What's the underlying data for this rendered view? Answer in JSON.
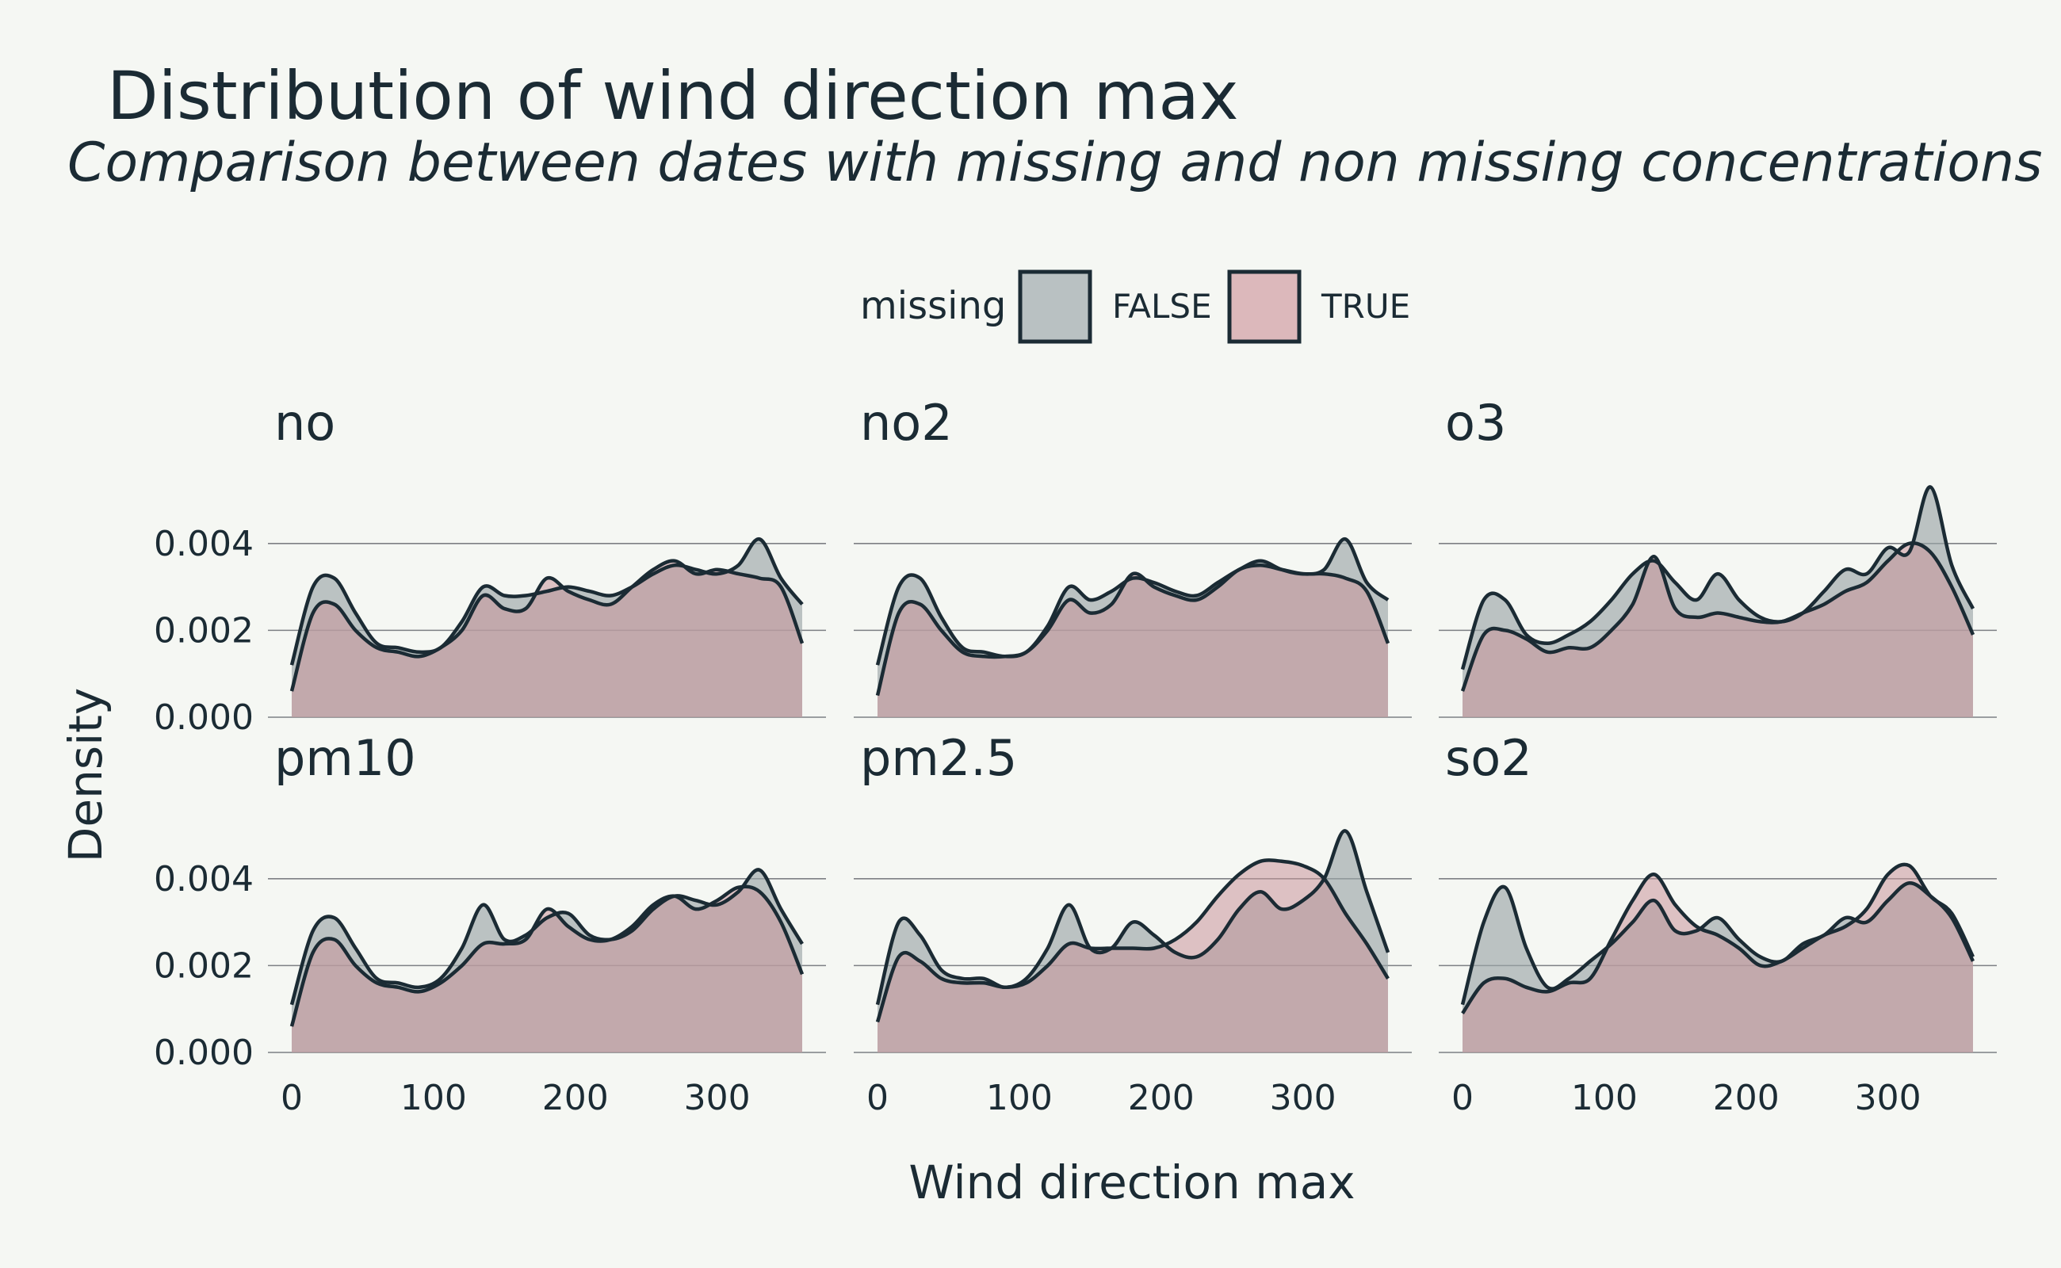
{
  "chart_data": {
    "type": "area",
    "title": "Distribution of wind direction max",
    "subtitle": "Comparison between dates with missing and non missing concentrations",
    "xlabel": "Wind direction max",
    "ylabel": "Density",
    "xlim": [
      0,
      360
    ],
    "ylim": [
      0,
      0.0052
    ],
    "x_ticks": [
      0,
      100,
      200,
      300
    ],
    "y_ticks": [
      0,
      0.002,
      0.004
    ],
    "y_tick_labels": [
      "0.000",
      "0.002",
      "0.004"
    ],
    "legend": {
      "title": "missing",
      "position": "top",
      "entries": [
        {
          "label": "FALSE",
          "fill": "#b9c1c2"
        },
        {
          "label": "TRUE",
          "fill": "#dcb8bb"
        }
      ]
    },
    "colors": {
      "outline": "#1b2b34",
      "false_fill": "#9ba6a8",
      "true_fill": "#c9959b",
      "background": "#f5f7f3"
    },
    "x": [
      0,
      15,
      30,
      45,
      60,
      75,
      90,
      105,
      120,
      135,
      150,
      165,
      180,
      195,
      210,
      225,
      240,
      255,
      270,
      285,
      300,
      315,
      330,
      345,
      360
    ],
    "panels": [
      {
        "label": "no",
        "series": [
          {
            "name": "FALSE",
            "values": [
              0.0012,
              0.003,
              0.0032,
              0.0024,
              0.0017,
              0.0016,
              0.0015,
              0.0016,
              0.0022,
              0.003,
              0.0028,
              0.0028,
              0.0029,
              0.003,
              0.0029,
              0.0028,
              0.003,
              0.0033,
              0.0035,
              0.0034,
              0.0033,
              0.0035,
              0.0041,
              0.0032,
              0.0026
            ]
          },
          {
            "name": "TRUE",
            "values": [
              0.0006,
              0.0024,
              0.0026,
              0.002,
              0.0016,
              0.0015,
              0.0014,
              0.0016,
              0.002,
              0.0028,
              0.0025,
              0.0025,
              0.0032,
              0.0029,
              0.0027,
              0.0026,
              0.003,
              0.0034,
              0.0036,
              0.0033,
              0.0034,
              0.0033,
              0.0032,
              0.003,
              0.0017
            ]
          }
        ]
      },
      {
        "label": "no2",
        "series": [
          {
            "name": "FALSE",
            "values": [
              0.0012,
              0.003,
              0.0032,
              0.0023,
              0.0016,
              0.0015,
              0.0014,
              0.0015,
              0.0021,
              0.003,
              0.0027,
              0.0029,
              0.0032,
              0.0031,
              0.0029,
              0.0028,
              0.0031,
              0.0034,
              0.0036,
              0.0034,
              0.0033,
              0.0034,
              0.0041,
              0.0031,
              0.0027
            ]
          },
          {
            "name": "TRUE",
            "values": [
              0.0005,
              0.0024,
              0.0026,
              0.002,
              0.0015,
              0.0014,
              0.0014,
              0.0015,
              0.002,
              0.0027,
              0.0024,
              0.0026,
              0.0033,
              0.003,
              0.0028,
              0.0027,
              0.003,
              0.0034,
              0.0035,
              0.0034,
              0.0033,
              0.0033,
              0.0032,
              0.0029,
              0.0017
            ]
          }
        ]
      },
      {
        "label": "o3",
        "series": [
          {
            "name": "FALSE",
            "values": [
              0.0011,
              0.0027,
              0.0027,
              0.0019,
              0.0017,
              0.0019,
              0.0022,
              0.0027,
              0.0033,
              0.0036,
              0.0031,
              0.0027,
              0.0033,
              0.0027,
              0.0023,
              0.0022,
              0.0024,
              0.0029,
              0.0034,
              0.0033,
              0.0039,
              0.0038,
              0.0053,
              0.0035,
              0.0025
            ]
          },
          {
            "name": "TRUE",
            "values": [
              0.0006,
              0.0019,
              0.002,
              0.0018,
              0.0015,
              0.0016,
              0.0016,
              0.002,
              0.0026,
              0.0037,
              0.0025,
              0.0023,
              0.0024,
              0.0023,
              0.0022,
              0.0022,
              0.0024,
              0.0026,
              0.0029,
              0.0031,
              0.0036,
              0.004,
              0.0038,
              0.003,
              0.0019
            ]
          }
        ]
      },
      {
        "label": "pm10",
        "series": [
          {
            "name": "FALSE",
            "values": [
              0.0011,
              0.0028,
              0.0031,
              0.0024,
              0.0017,
              0.0016,
              0.0015,
              0.0017,
              0.0024,
              0.0034,
              0.0026,
              0.0027,
              0.0031,
              0.0032,
              0.0027,
              0.0026,
              0.0028,
              0.0033,
              0.0036,
              0.0035,
              0.0034,
              0.0037,
              0.0042,
              0.0033,
              0.0025
            ]
          },
          {
            "name": "TRUE",
            "values": [
              0.0006,
              0.0023,
              0.0026,
              0.002,
              0.0016,
              0.0015,
              0.0014,
              0.0016,
              0.002,
              0.0025,
              0.0025,
              0.0026,
              0.0033,
              0.0029,
              0.0026,
              0.0026,
              0.0029,
              0.0034,
              0.0036,
              0.0033,
              0.0035,
              0.0038,
              0.0037,
              0.003,
              0.0018
            ]
          }
        ]
      },
      {
        "label": "pm2.5",
        "series": [
          {
            "name": "FALSE",
            "values": [
              0.0011,
              0.003,
              0.0027,
              0.0019,
              0.0017,
              0.0017,
              0.0015,
              0.0017,
              0.0024,
              0.0034,
              0.0024,
              0.0024,
              0.003,
              0.0027,
              0.0023,
              0.0022,
              0.0026,
              0.0033,
              0.0037,
              0.0033,
              0.0035,
              0.004,
              0.0051,
              0.0037,
              0.0023
            ]
          },
          {
            "name": "TRUE",
            "values": [
              0.0007,
              0.0022,
              0.0021,
              0.0017,
              0.0016,
              0.0016,
              0.0015,
              0.0016,
              0.002,
              0.0025,
              0.0024,
              0.0024,
              0.0024,
              0.0024,
              0.0026,
              0.003,
              0.0036,
              0.0041,
              0.0044,
              0.0044,
              0.0043,
              0.004,
              0.0032,
              0.0025,
              0.0017
            ]
          }
        ]
      },
      {
        "label": "so2",
        "series": [
          {
            "name": "FALSE",
            "values": [
              0.0011,
              0.003,
              0.0038,
              0.0024,
              0.0015,
              0.0017,
              0.0021,
              0.0025,
              0.003,
              0.0035,
              0.0028,
              0.0028,
              0.0031,
              0.0026,
              0.0022,
              0.0021,
              0.0025,
              0.0027,
              0.0031,
              0.003,
              0.0035,
              0.0039,
              0.0036,
              0.0031,
              0.0021
            ]
          },
          {
            "name": "TRUE",
            "values": [
              0.0009,
              0.0016,
              0.0017,
              0.0015,
              0.0014,
              0.0016,
              0.0017,
              0.0026,
              0.0035,
              0.0041,
              0.0034,
              0.0029,
              0.0027,
              0.0024,
              0.002,
              0.0021,
              0.0024,
              0.0027,
              0.0029,
              0.0033,
              0.0041,
              0.0043,
              0.0036,
              0.0032,
              0.0022
            ]
          }
        ]
      }
    ]
  }
}
